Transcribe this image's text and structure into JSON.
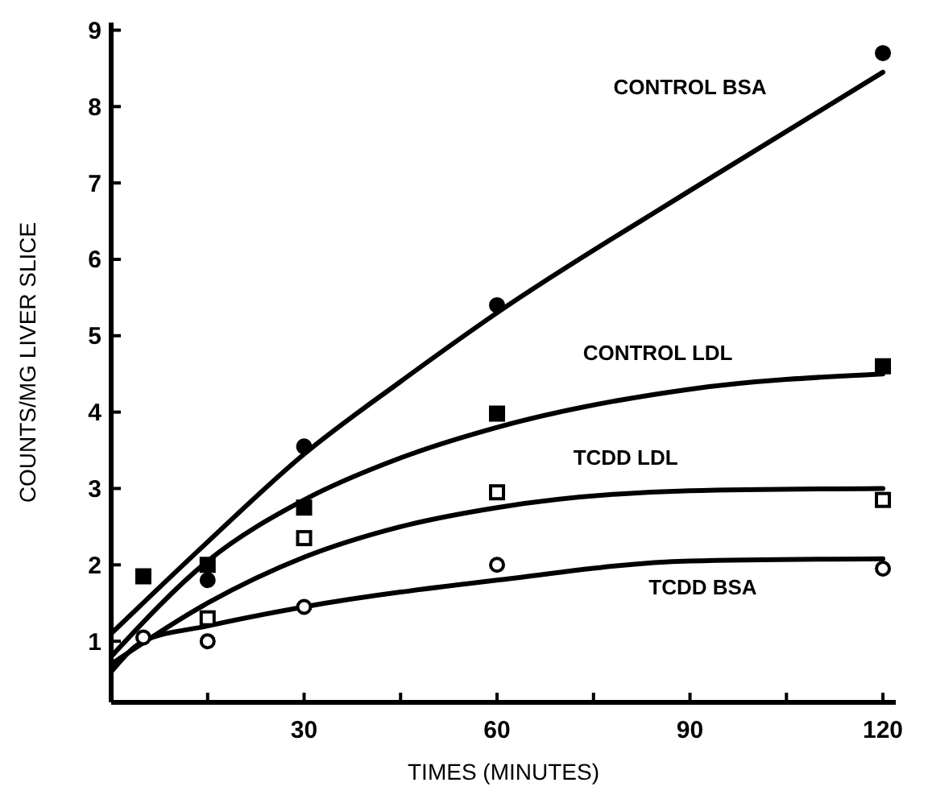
{
  "chart_data": {
    "type": "line",
    "xlabel": "TIMES (MINUTES)",
    "ylabel": "COUNTS/MG LIVER SLICE",
    "xlim": [
      0,
      122
    ],
    "ylim": [
      0.2,
      9.1
    ],
    "xticks": [
      {
        "value": 15,
        "label": null
      },
      30,
      {
        "value": 45,
        "label": null
      },
      60,
      {
        "value": 75,
        "label": null
      },
      90,
      {
        "value": 105,
        "label": null
      },
      120
    ],
    "yticks": [
      1,
      2,
      3,
      4,
      5,
      6,
      7,
      8,
      9
    ],
    "grid": false,
    "line_style": "solid",
    "series": [
      {
        "name": "CONTROL BSA",
        "type": "line",
        "color": "#000000",
        "marker": "none",
        "x": [
          0,
          15,
          30,
          45,
          60,
          90,
          120
        ],
        "values": [
          1.1,
          2.3,
          3.45,
          4.4,
          5.3,
          6.9,
          8.45
        ]
      },
      {
        "name": "CONTROL LDL",
        "type": "line",
        "color": "#000000",
        "marker": "none",
        "x": [
          0,
          15,
          30,
          45,
          60,
          90,
          120
        ],
        "values": [
          0.8,
          2.05,
          2.85,
          3.4,
          3.8,
          4.3,
          4.5
        ]
      },
      {
        "name": "TCDD LDL",
        "type": "line",
        "color": "#000000",
        "marker": "none",
        "x": [
          0,
          15,
          30,
          45,
          60,
          90,
          120
        ],
        "values": [
          0.7,
          1.5,
          2.1,
          2.5,
          2.75,
          2.97,
          3.0
        ]
      },
      {
        "name": "TCDD BSA",
        "type": "line",
        "color": "#000000",
        "marker": "none",
        "x": [
          0,
          5,
          15,
          30,
          60,
          90,
          120
        ],
        "values": [
          0.6,
          1.0,
          1.2,
          1.45,
          1.8,
          2.05,
          2.08
        ]
      },
      {
        "type": "scatter",
        "color": "#000000",
        "marker": "circle",
        "x": [
          15,
          30,
          60,
          120
        ],
        "values": [
          1.8,
          3.55,
          5.4,
          8.7
        ]
      },
      {
        "type": "scatter",
        "color": "#000000",
        "marker": "square",
        "x": [
          5,
          15,
          30,
          60,
          120
        ],
        "values": [
          1.85,
          2.0,
          2.75,
          3.98,
          4.6
        ]
      },
      {
        "type": "scatter",
        "color": "#ffffff",
        "marker": "square",
        "x": [
          15,
          30,
          60,
          120
        ],
        "values": [
          1.3,
          2.35,
          2.95,
          2.85
        ]
      },
      {
        "type": "scatter",
        "color": "#ffffff",
        "marker": "circle",
        "x": [
          5,
          15,
          30,
          60,
          120
        ],
        "values": [
          1.05,
          1.0,
          1.45,
          2.0,
          1.95
        ]
      }
    ]
  }
}
